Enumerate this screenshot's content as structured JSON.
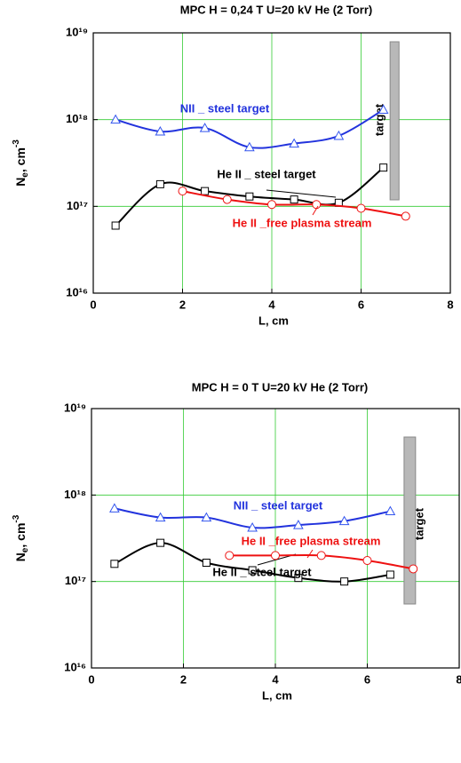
{
  "chart_data": [
    {
      "type": "line",
      "title": "MPC H = 0,24 T U=20 kV He (2 Torr)",
      "x_label": "L, cm",
      "y_label": [
        "N",
        "e",
        ", cm",
        "-3"
      ],
      "xlim": [
        0,
        8
      ],
      "xticks": [
        0,
        2,
        4,
        6,
        8
      ],
      "ylim": [
        1e+16,
        1e+19
      ],
      "log_y": true,
      "yticks": [
        {
          "value": 1e+16,
          "label": "10¹⁶"
        },
        {
          "value": 1e+17,
          "label": "10¹⁷"
        },
        {
          "value": 1e+18,
          "label": "10¹⁸"
        },
        {
          "value": 1e+19,
          "label": "10¹⁹"
        }
      ],
      "grid": true,
      "grid_color": "#33cc33",
      "annotations": [
        "target"
      ],
      "series": [
        {
          "name": "NII _ steel target",
          "color": "#2233dd",
          "marker": "triangle",
          "x": [
            0.5,
            1.5,
            2.5,
            3.5,
            4.5,
            5.5,
            6.5
          ],
          "values": [
            1e+18,
            7.3e+17,
            8e+17,
            4.8e+17,
            5.3e+17,
            6.5e+17,
            1.3e+18
          ]
        },
        {
          "name": "He II _ steel target",
          "color": "#000000",
          "marker": "square",
          "x": [
            0.5,
            1.5,
            2.5,
            3.5,
            4.5,
            5.5,
            6.5
          ],
          "values": [
            6e+16,
            1.8e+17,
            1.5e+17,
            1.3e+17,
            1.2e+17,
            1.1e+17,
            2.8e+17
          ]
        },
        {
          "name": "He II _free plasma stream",
          "color": "#ee1111",
          "marker": "circle",
          "x": [
            2,
            3,
            4,
            5,
            6,
            7
          ],
          "values": [
            1.5e+17,
            1.2e+17,
            1.05e+17,
            1.05e+17,
            9.5e+16,
            7.7e+16
          ]
        }
      ]
    },
    {
      "type": "line",
      "title": "MPC H = 0 T U=20 kV He (2 Torr)",
      "x_label": "L, cm",
      "y_label": [
        "N",
        "e",
        ", cm",
        "-3"
      ],
      "xlim": [
        0,
        8
      ],
      "xticks": [
        0,
        2,
        4,
        6,
        8
      ],
      "ylim": [
        1e+16,
        1e+19
      ],
      "log_y": true,
      "yticks": [
        {
          "value": 1e+16,
          "label": "10¹⁶"
        },
        {
          "value": 1e+17,
          "label": "10¹⁷"
        },
        {
          "value": 1e+18,
          "label": "10¹⁸"
        },
        {
          "value": 1e+19,
          "label": "10¹⁹"
        }
      ],
      "grid": true,
      "grid_color": "#33cc33",
      "annotations": [
        "target"
      ],
      "series": [
        {
          "name": "NII _ steel target",
          "color": "#2233dd",
          "marker": "triangle",
          "x": [
            0.5,
            1.5,
            2.5,
            3.5,
            4.5,
            5.5,
            6.5
          ],
          "values": [
            7e+17,
            5.5e+17,
            5.5e+17,
            4.2e+17,
            4.5e+17,
            5e+17,
            6.5e+17
          ]
        },
        {
          "name": "He II _ steel target",
          "color": "#000000",
          "marker": "square",
          "x": [
            0.5,
            1.5,
            2.5,
            3.5,
            4.5,
            5.5,
            6.5
          ],
          "values": [
            1.6e+17,
            2.8e+17,
            1.65e+17,
            1.35e+17,
            1.1e+17,
            1e+17,
            1.2e+17
          ]
        },
        {
          "name": "He II _free plasma stream",
          "color": "#ee1111",
          "marker": "circle",
          "x": [
            3,
            4,
            5,
            6,
            7
          ],
          "values": [
            2e+17,
            2e+17,
            2e+17,
            1.75e+17,
            1.4e+17
          ]
        }
      ]
    }
  ]
}
